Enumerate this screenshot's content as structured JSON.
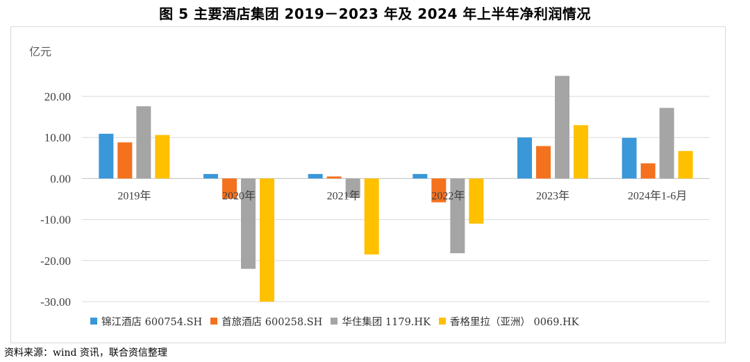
{
  "title": "图 5    主要酒店集团 2019－2023 年及 2024 年上半年净利润情况",
  "source": "资料来源：wind 资讯，联合资信整理",
  "chart_data": {
    "type": "bar",
    "ylabel": "亿元",
    "ylim": [
      -30,
      30
    ],
    "yticks": [
      20,
      10,
      0,
      -10,
      -20,
      -30
    ],
    "ytick_labels": [
      "20.00",
      "10.00",
      "0.00",
      "-10.00",
      "-20.00",
      "-30.00"
    ],
    "grid": true,
    "legend_position": "bottom",
    "categories": [
      "2019年",
      "2020年",
      "2021年",
      "2022年",
      "2023年",
      "2024年1-6月"
    ],
    "series": [
      {
        "name": "锦江酒店 600754.SH",
        "color": "#3a97d8",
        "values": [
          10.9,
          1.1,
          1.1,
          1.1,
          10.0,
          9.9
        ]
      },
      {
        "name": "首旅酒店 600258.SH",
        "color": "#f4711e",
        "values": [
          8.8,
          -4.9,
          0.5,
          -5.8,
          7.9,
          3.7
        ]
      },
      {
        "name": "华住集团 1179.HK",
        "color": "#a5a5a5",
        "values": [
          17.6,
          -22.0,
          -4.6,
          -18.2,
          25.0,
          17.2
        ]
      },
      {
        "name": "香格里拉（亚洲） 0069.HK",
        "color": "#ffc000",
        "values": [
          10.6,
          -30.0,
          -18.5,
          -11.0,
          13.0,
          6.7
        ]
      }
    ]
  }
}
